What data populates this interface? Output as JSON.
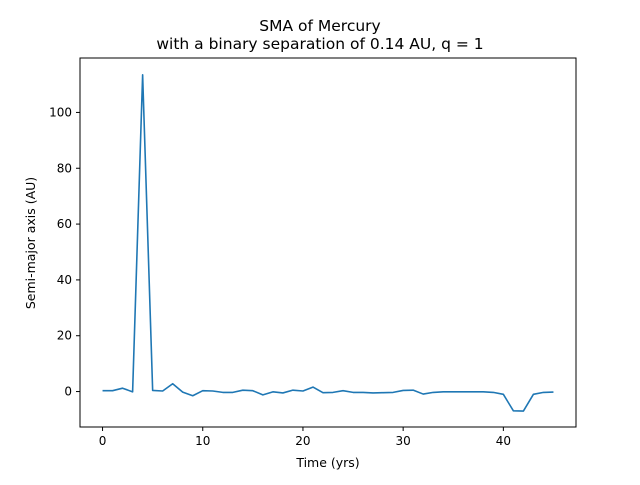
{
  "chart_data": {
    "type": "line",
    "title": "SMA of Mercury",
    "subtitle": "with a binary separation of 0.14 AU, q = 1",
    "xlabel": "Time (yrs)",
    "ylabel": "Semi-major axis (AU)",
    "xlim": [
      -2.25,
      47.25
    ],
    "ylim": [
      -12.7,
      119.5
    ],
    "xticks": [
      0,
      10,
      20,
      30,
      40
    ],
    "yticks": [
      0,
      20,
      40,
      60,
      80,
      100
    ],
    "xtick_labels": [
      "0",
      "10",
      "20",
      "30",
      "40"
    ],
    "ytick_labels": [
      "0",
      "20",
      "40",
      "60",
      "80",
      "100"
    ],
    "grid": false,
    "series": [
      {
        "color": "#1f77b4",
        "x": [
          0,
          1,
          2,
          3,
          4,
          5,
          6,
          7,
          8,
          9,
          10,
          11,
          12,
          13,
          14,
          15,
          16,
          17,
          18,
          19,
          20,
          21,
          22,
          23,
          24,
          25,
          26,
          27,
          28,
          29,
          30,
          31,
          32,
          33,
          34,
          35,
          36,
          37,
          38,
          39,
          40,
          41,
          42,
          43,
          44,
          45
        ],
        "y": [
          0.3,
          0.3,
          1.2,
          -0.1,
          113.5,
          0.4,
          0.2,
          2.8,
          -0.2,
          -1.5,
          0.3,
          0.2,
          -0.3,
          -0.3,
          0.5,
          0.3,
          -1.2,
          -0.1,
          -0.5,
          0.5,
          0.2,
          1.6,
          -0.4,
          -0.3,
          0.3,
          -0.3,
          -0.3,
          -0.5,
          -0.4,
          -0.3,
          0.4,
          0.5,
          -0.9,
          -0.3,
          -0.1,
          -0.1,
          -0.1,
          -0.1,
          -0.1,
          -0.3,
          -1.0,
          -6.9,
          -7.0,
          -1.0,
          -0.3,
          -0.2
        ]
      }
    ]
  }
}
